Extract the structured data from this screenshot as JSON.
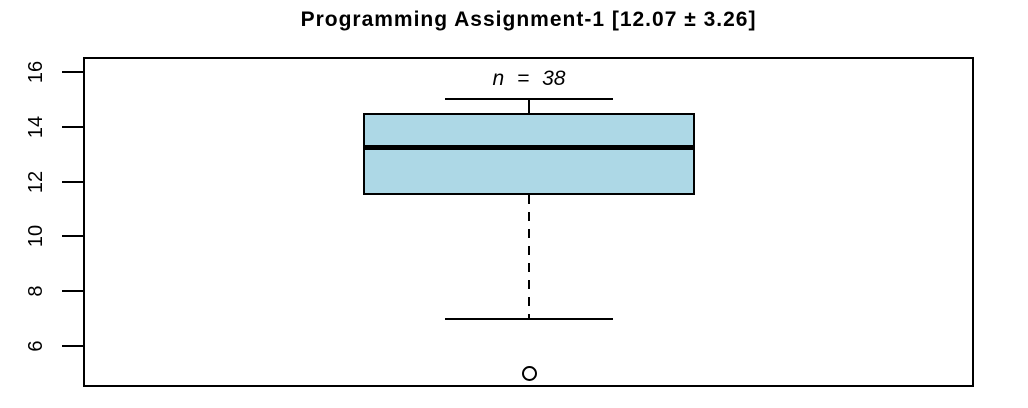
{
  "chart_data": {
    "type": "boxplot",
    "title": "Programming Assignment-1 [12.07 ± 3.26]",
    "annotation": "n = 38",
    "n": 38,
    "mean": 12.07,
    "sd": 3.26,
    "series": [
      {
        "name": "Programming Assignment-1",
        "whisker_low": 7,
        "q1": 11.5,
        "median": 13.25,
        "q3": 14.5,
        "whisker_high": 15,
        "outliers": [
          5
        ]
      }
    ],
    "yticks": [
      6,
      8,
      10,
      12,
      14,
      16
    ],
    "ylim": [
      4.5,
      16.55
    ],
    "xlabel": "",
    "ylabel": "",
    "grid": false,
    "legend": "none",
    "orientation": "vertical",
    "colors": {
      "box_fill": "#ADD8E6",
      "line": "#000000",
      "background": "#FFFFFF"
    }
  }
}
